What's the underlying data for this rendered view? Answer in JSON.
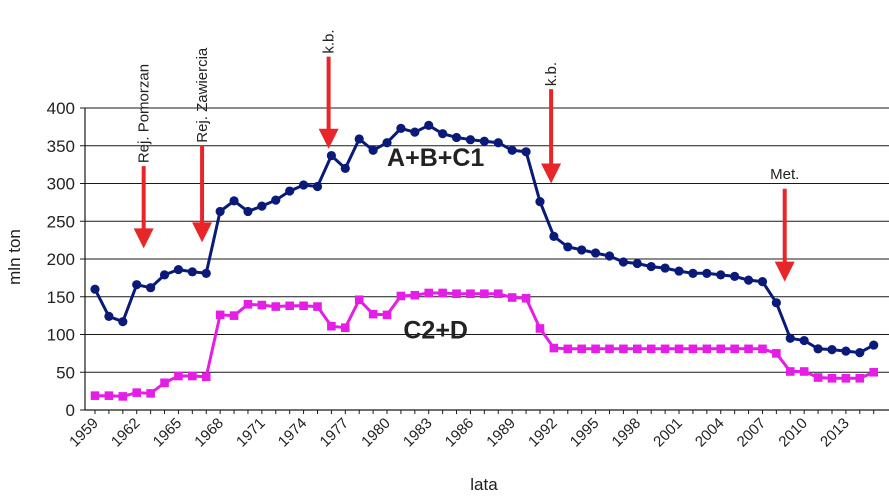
{
  "chart_data": {
    "type": "line",
    "title": "",
    "xlabel": "lata",
    "ylabel": "mln ton",
    "ylim": [
      0,
      400
    ],
    "yticks": [
      0,
      50,
      100,
      150,
      200,
      250,
      300,
      350,
      400
    ],
    "xlim": [
      1959,
      2015
    ],
    "xticks": [
      "1959",
      "1962",
      "1965",
      "1968",
      "1971",
      "1974",
      "1977",
      "1980",
      "1983",
      "1986",
      "1989",
      "1992",
      "1995",
      "1998",
      "2001",
      "2004",
      "2007",
      "2010",
      "2013"
    ],
    "grid": "horizontal",
    "series": [
      {
        "name": "A+B+C1",
        "color": "#0a1a78",
        "marker": "circle",
        "x": [
          1959,
          1960,
          1961,
          1962,
          1963,
          1964,
          1965,
          1966,
          1967,
          1968,
          1969,
          1970,
          1971,
          1972,
          1973,
          1974,
          1975,
          1976,
          1977,
          1978,
          1979,
          1980,
          1981,
          1982,
          1983,
          1984,
          1985,
          1986,
          1987,
          1988,
          1989,
          1990,
          1991,
          1992,
          1993,
          1994,
          1995,
          1996,
          1997,
          1998,
          1999,
          2000,
          2001,
          2002,
          2003,
          2004,
          2005,
          2006,
          2007,
          2008,
          2009,
          2010,
          2011,
          2012,
          2013,
          2014,
          2015
        ],
        "values": [
          160,
          124,
          117,
          166,
          162,
          179,
          186,
          183,
          181,
          263,
          277,
          263,
          270,
          278,
          290,
          298,
          296,
          337,
          320,
          359,
          344,
          354,
          373,
          368,
          377,
          366,
          361,
          358,
          356,
          354,
          344,
          342,
          276,
          230,
          216,
          212,
          208,
          204,
          196,
          194,
          190,
          188,
          184,
          181,
          181,
          179,
          177,
          172,
          170,
          142,
          95,
          92,
          81,
          80,
          78,
          76,
          86
        ]
      },
      {
        "name": "C2+D",
        "color": "#e51ee5",
        "marker": "square",
        "x": [
          1959,
          1960,
          1961,
          1962,
          1963,
          1964,
          1965,
          1966,
          1967,
          1968,
          1969,
          1970,
          1971,
          1972,
          1973,
          1974,
          1975,
          1976,
          1977,
          1978,
          1979,
          1980,
          1981,
          1982,
          1983,
          1984,
          1985,
          1986,
          1987,
          1988,
          1989,
          1990,
          1991,
          1992,
          1993,
          1994,
          1995,
          1996,
          1997,
          1998,
          1999,
          2000,
          2001,
          2002,
          2003,
          2004,
          2005,
          2006,
          2007,
          2008,
          2009,
          2010,
          2011,
          2012,
          2013,
          2014,
          2015
        ],
        "values": [
          19,
          19,
          18,
          23,
          22,
          36,
          45,
          45,
          44,
          126,
          125,
          140,
          139,
          137,
          138,
          138,
          137,
          111,
          109,
          146,
          127,
          126,
          151,
          152,
          155,
          155,
          154,
          154,
          154,
          154,
          149,
          148,
          108,
          82,
          81,
          81,
          81,
          81,
          81,
          81,
          81,
          81,
          81,
          81,
          81,
          81,
          81,
          81,
          81,
          75,
          51,
          51,
          43,
          42,
          42,
          42,
          50
        ]
      }
    ],
    "annotations": [
      {
        "text": "Rej. Pomorzan",
        "x": 1962.5,
        "arrow_from": 323,
        "arrow_to": 214
      },
      {
        "text": "Rej. Zawiercia",
        "x": 1966.7,
        "arrow_from": 350,
        "arrow_to": 222
      },
      {
        "text": "k.b.",
        "x": 1975.8,
        "arrow_from": 468,
        "arrow_to": 346
      },
      {
        "text": "k.b.",
        "x": 1991.8,
        "arrow_from": 425,
        "arrow_to": 300
      },
      {
        "text": "Met.",
        "x": 2008.6,
        "arrow_from": 293,
        "arrow_to": 170
      }
    ],
    "arrow_color": "#e8262a"
  }
}
